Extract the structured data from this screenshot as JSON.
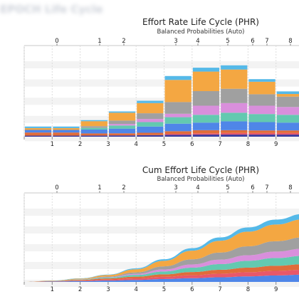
{
  "window": {
    "blurred_heading": "EPOCH Life Cycle"
  },
  "colors": {
    "frame": "#c9c9c9",
    "grid_dash": "#dddddd",
    "band": "#f3f3f3",
    "layers": [
      "#e06c3a",
      "#f4a742",
      "#a0a0a0",
      "#d98fdc",
      "#63c9b0",
      "#4f86e8",
      "#9a5bc7",
      "#e8586a",
      "#55b9e8",
      "#3a3a9e"
    ]
  },
  "chart_data": [
    {
      "type": "bar",
      "title": "Effort Rate Life Cycle (PHR)",
      "subtitle": "Balanced Probabilities (Auto)",
      "bottom_ticks": [
        "1",
        "2",
        "3",
        "4",
        "5",
        "6",
        "7",
        "8",
        "9"
      ],
      "top_ticks": [
        "0",
        "1",
        "2",
        "3",
        "4",
        "5",
        "6",
        "7",
        "8"
      ],
      "series": [
        {
          "values": [
            0.4,
            0.4,
            0.45,
            0.5,
            0.6,
            0.7,
            0.8,
            0.8,
            0.8,
            0.8
          ],
          "color": "#3a3a9e"
        },
        {
          "values": [
            0.0,
            0.0,
            0.0,
            0.0,
            0.0,
            0.4,
            0.5,
            0.6,
            0.6,
            0.6
          ],
          "color": "#e8586a"
        },
        {
          "values": [
            1.2,
            1.2,
            0.8,
            0.8,
            0.9,
            1.0,
            1.2,
            1.1,
            1.0,
            1.0
          ],
          "color": "#e06c3a"
        },
        {
          "values": [
            1.0,
            1.0,
            1.5,
            1.8,
            2.4,
            2.9,
            2.9,
            3.4,
            3.2,
            3.0
          ],
          "color": "#4f86e8"
        },
        {
          "values": [
            0.0,
            0.0,
            0.6,
            1.2,
            1.7,
            2.5,
            3.0,
            3.3,
            3.1,
            3.0
          ],
          "color": "#63c9b0"
        },
        {
          "values": [
            0.0,
            0.0,
            0.0,
            0.6,
            1.2,
            1.3,
            3.5,
            3.7,
            3.2,
            3.0
          ],
          "color": "#d98fdc"
        },
        {
          "values": [
            0.0,
            0.0,
            0.7,
            1.3,
            2.2,
            4.5,
            5.6,
            5.5,
            4.4,
            4.0
          ],
          "color": "#a0a0a0"
        },
        {
          "values": [
            0.7,
            0.7,
            1.9,
            3.0,
            3.9,
            8.5,
            7.5,
            7.4,
            4.8,
            1.0
          ],
          "color": "#f4a742"
        },
        {
          "values": [
            0.6,
            0.6,
            0.4,
            0.5,
            0.9,
            1.5,
            1.5,
            1.6,
            1.0,
            1.0
          ],
          "color": "#55b9e8"
        }
      ],
      "ylim": [
        0,
        35
      ]
    },
    {
      "type": "area",
      "title": "Cum Effort Life Cycle (PHR)",
      "subtitle": "Balanced Probabilities (Auto)",
      "bottom_ticks": [
        "1",
        "2",
        "3",
        "4",
        "5",
        "6",
        "7",
        "8",
        "9"
      ],
      "top_ticks": [
        "0",
        "1",
        "2",
        "3",
        "4",
        "5",
        "6",
        "7",
        "8"
      ],
      "x": [
        0,
        1,
        2,
        3,
        4,
        5,
        6,
        7,
        8,
        9,
        10
      ],
      "series": [
        {
          "values": [
            0,
            0.3,
            0.7,
            1.2,
            1.8,
            2.6,
            3.4,
            4.2,
            5.0,
            5.8,
            6.5
          ],
          "color": "#4f86e8"
        },
        {
          "values": [
            0,
            0.2,
            0.5,
            0.9,
            1.4,
            2.0,
            2.6,
            3.2,
            3.7,
            4.1,
            4.4
          ],
          "color": "#e8586a"
        },
        {
          "values": [
            0,
            0.3,
            0.6,
            1.0,
            1.5,
            2.2,
            2.9,
            3.5,
            4.1,
            4.6,
            5.0
          ],
          "color": "#e06c3a"
        },
        {
          "values": [
            0,
            0.1,
            0.3,
            0.8,
            1.6,
            2.6,
            3.9,
            5.1,
            6.2,
            7.0,
            7.6
          ],
          "color": "#63c9b0"
        },
        {
          "values": [
            0,
            0.0,
            0.1,
            0.3,
            0.9,
            1.8,
            2.9,
            4.0,
            5.0,
            5.8,
            6.4
          ],
          "color": "#d98fdc"
        },
        {
          "values": [
            0,
            0.0,
            0.2,
            0.6,
            1.4,
            2.8,
            4.6,
            6.4,
            8.0,
            9.3,
            10.2
          ],
          "color": "#a0a0a0"
        },
        {
          "values": [
            0,
            0.2,
            0.6,
            1.4,
            2.8,
            5.0,
            7.8,
            10.6,
            13.2,
            15.0,
            16.2
          ],
          "color": "#f4a742"
        },
        {
          "values": [
            0,
            0.1,
            0.2,
            0.4,
            0.8,
            1.4,
            2.2,
            3.0,
            3.8,
            4.4,
            4.8
          ],
          "color": "#55b9e8"
        }
      ],
      "ylim": [
        0,
        80
      ]
    }
  ]
}
